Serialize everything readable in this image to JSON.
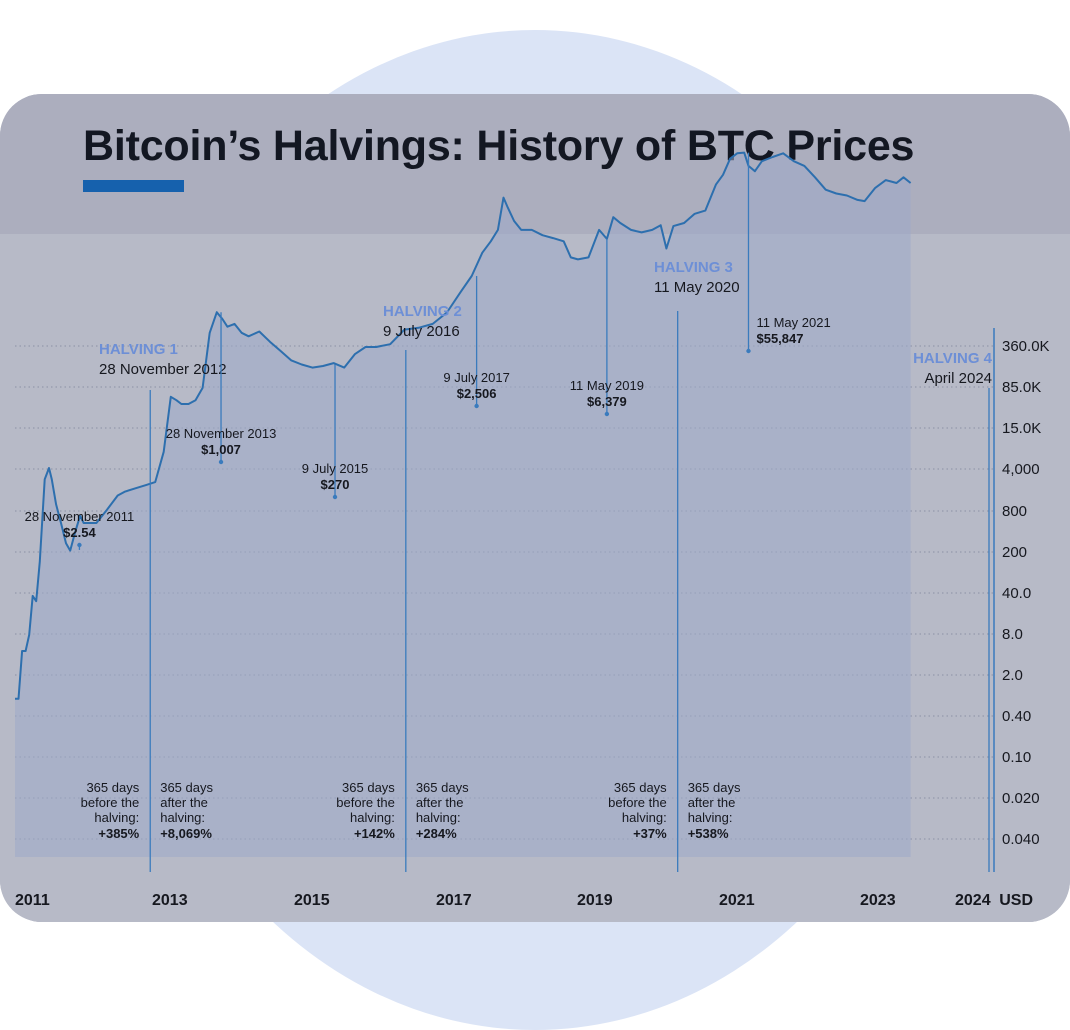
{
  "title": "Bitcoin’s Halvings: History of BTC Prices",
  "colors": {
    "line": "#2d6fae",
    "area": "#9ea9c8",
    "accent": "#1661ad",
    "halving_label": "#6d8fd6"
  },
  "chart_data": {
    "type": "area",
    "title": "Bitcoin’s Halvings: History of BTC Prices",
    "xlabel": "",
    "ylabel": "",
    "y_unit": "USD",
    "x_range": [
      2011.0,
      2024.0
    ],
    "x_ticks": [
      "2011",
      "2013",
      "2015",
      "2017",
      "2019",
      "2021",
      "2023",
      "2024"
    ],
    "y_ticks": [
      "360.0K",
      "85.0K",
      "15.0K",
      "4,000",
      "800",
      "200",
      "40.0",
      "8.0",
      "2.0",
      "0.40",
      "0.10",
      "0.020",
      "0.040"
    ],
    "grid": true,
    "series": [
      {
        "x": [
          2011.0,
          2011.05,
          2011.1,
          2011.15,
          2011.2,
          2011.25,
          2011.3,
          2011.35,
          2011.42,
          2011.48,
          2011.52,
          2011.58,
          2011.65,
          2011.72,
          2011.78,
          2011.85,
          2011.92,
          2011.97,
          2012.05,
          2012.15,
          2012.3,
          2012.45,
          2012.55,
          2012.7,
          2012.85,
          2012.98,
          2013.1,
          2013.2,
          2013.28,
          2013.35,
          2013.45,
          2013.55,
          2013.65,
          2013.75,
          2013.85,
          2013.93,
          2014.0,
          2014.1,
          2014.2,
          2014.3,
          2014.45,
          2014.6,
          2014.75,
          2014.9,
          2015.05,
          2015.2,
          2015.35,
          2015.5,
          2015.65,
          2015.8,
          2015.95,
          2016.1,
          2016.3,
          2016.5,
          2016.7,
          2016.9,
          2017.1,
          2017.3,
          2017.45,
          2017.6,
          2017.72,
          2017.82,
          2017.9,
          2017.96,
          2018.05,
          2018.15,
          2018.3,
          2018.45,
          2018.6,
          2018.75,
          2018.85,
          2018.95,
          2019.1,
          2019.25,
          2019.36,
          2019.45,
          2019.55,
          2019.7,
          2019.85,
          2020.0,
          2020.12,
          2020.2,
          2020.3,
          2020.45,
          2020.6,
          2020.75,
          2020.9,
          2021.0,
          2021.1,
          2021.2,
          2021.3,
          2021.36,
          2021.45,
          2021.55,
          2021.7,
          2021.85,
          2022.0,
          2022.15,
          2022.3,
          2022.45,
          2022.6,
          2022.75,
          2022.9,
          2023.0,
          2023.15,
          2023.3,
          2023.45,
          2023.55,
          2023.65
        ],
        "y": [
          0.06,
          0.06,
          0.2,
          0.2,
          0.3,
          0.8,
          0.7,
          1.9,
          15,
          20,
          15,
          8,
          5,
          3,
          2.5,
          4,
          6,
          5,
          5,
          5,
          7,
          10,
          11,
          12,
          13,
          14,
          30,
          120,
          110,
          100,
          100,
          110,
          150,
          600,
          1007,
          850,
          700,
          750,
          600,
          550,
          620,
          480,
          380,
          300,
          270,
          250,
          260,
          280,
          250,
          350,
          420,
          420,
          450,
          650,
          680,
          750,
          1000,
          1700,
          2506,
          4500,
          6000,
          8000,
          18000,
          14000,
          10000,
          8000,
          8000,
          7000,
          6500,
          6000,
          4000,
          3800,
          4000,
          8000,
          6379,
          11000,
          9500,
          8000,
          7500,
          8000,
          9000,
          5000,
          8800,
          9500,
          12000,
          13000,
          25000,
          32000,
          48000,
          55000,
          55847,
          40000,
          35000,
          45000,
          50000,
          55000,
          45000,
          40000,
          30000,
          22000,
          20000,
          19000,
          17000,
          16500,
          23000,
          28000,
          26000,
          30000,
          26000
        ],
        "style": "line with shaded area"
      }
    ],
    "halvings": [
      {
        "label": "HALVING 1",
        "date": "28 November 2012",
        "x": 2012.91
      },
      {
        "label": "HALVING 2",
        "date": "9 July 2016",
        "x": 2016.52
      },
      {
        "label": "HALVING 3",
        "date": "11 May 2020",
        "x": 2020.36
      },
      {
        "label": "HALVING 4",
        "date": "April 2024",
        "x": 2024.3
      }
    ],
    "annotations": [
      {
        "date": "28 November 2011",
        "price": "$2.54",
        "x": 2011.91,
        "y": 2.54
      },
      {
        "date": "28 November 2013",
        "price": "$1,007",
        "x": 2013.91,
        "y": 1007
      },
      {
        "date": "9 July 2015",
        "price": "$270",
        "x": 2015.52,
        "y": 270
      },
      {
        "date": "9 July 2017",
        "price": "$2,506",
        "x": 2017.52,
        "y": 2506
      },
      {
        "date": "11 May 2019",
        "price": "$6,379",
        "x": 2019.36,
        "y": 6379
      },
      {
        "date": "11 May 2021",
        "price": "$55,847",
        "x": 2021.36,
        "y": 55847
      }
    ],
    "period_notes": [
      {
        "lines": [
          "365 days",
          "before the",
          "halving:"
        ],
        "value": "+385%",
        "side": "before",
        "halving": 1
      },
      {
        "lines": [
          "365 days",
          "after the",
          "halving:"
        ],
        "value": "+8,069%",
        "side": "after",
        "halving": 1
      },
      {
        "lines": [
          "365 days",
          "before the",
          "halving:"
        ],
        "value": "+142%",
        "side": "before",
        "halving": 2
      },
      {
        "lines": [
          "365 days",
          "after the",
          "halving:"
        ],
        "value": "+284%",
        "side": "after",
        "halving": 2
      },
      {
        "lines": [
          "365 days",
          "before the",
          "halving:"
        ],
        "value": "+37%",
        "side": "before",
        "halving": 3
      },
      {
        "lines": [
          "365 days",
          "after the",
          "halving:"
        ],
        "value": "+538%",
        "side": "after",
        "halving": 3
      }
    ]
  }
}
